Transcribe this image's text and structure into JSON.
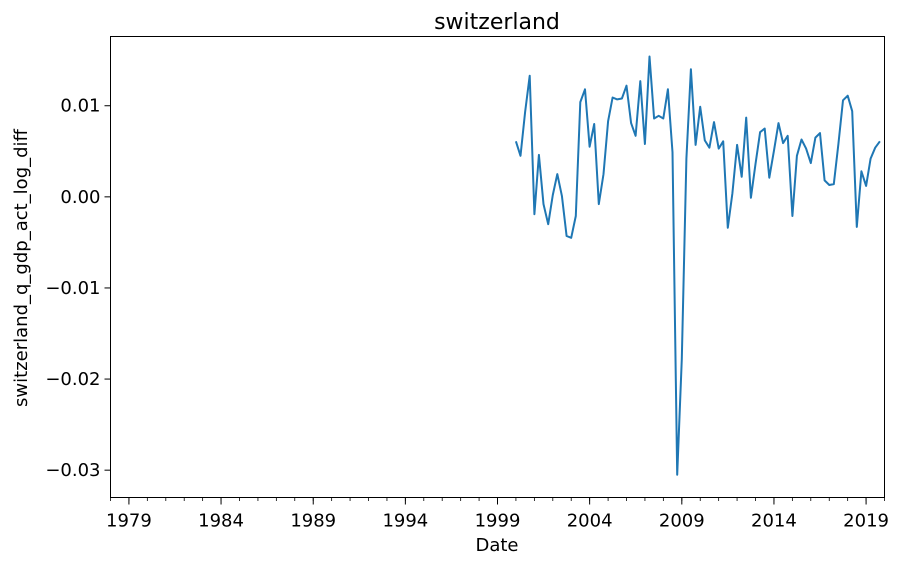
{
  "chart_data": {
    "type": "line",
    "title": "switzerland",
    "xlabel": "Date",
    "ylabel": "switzerland_q_gdp_act_log_diff",
    "xlim": [
      "1978-01-01",
      "2020-01-01"
    ],
    "ylim": [
      -0.033,
      0.0176
    ],
    "x_ticks": [
      "1979",
      "1984",
      "1989",
      "1994",
      "1999",
      "2004",
      "2009",
      "2014",
      "2019"
    ],
    "y_ticks": [
      {
        "value": 0.01,
        "label": "0.01"
      },
      {
        "value": 0.0,
        "label": "0.00"
      },
      {
        "value": -0.01,
        "label": "−0.01"
      },
      {
        "value": -0.02,
        "label": "−0.02"
      },
      {
        "value": -0.03,
        "label": "−0.03"
      }
    ],
    "grid": false,
    "legend": "none",
    "line_color": "#1f77b4",
    "series": [
      {
        "x": [
          "2000-01-01",
          "2000-04-01",
          "2000-07-01",
          "2000-10-01",
          "2001-01-01",
          "2001-04-01",
          "2001-07-01",
          "2001-10-01",
          "2002-01-01",
          "2002-04-01",
          "2002-07-01",
          "2002-10-01",
          "2003-01-01",
          "2003-04-01",
          "2003-07-01",
          "2003-10-01",
          "2004-01-01",
          "2004-04-01",
          "2004-07-01",
          "2004-10-01",
          "2005-01-01",
          "2005-04-01",
          "2005-07-01",
          "2005-10-01",
          "2006-01-01",
          "2006-04-01",
          "2006-07-01",
          "2006-10-01",
          "2007-01-01",
          "2007-04-01",
          "2007-07-01",
          "2007-10-01",
          "2008-01-01",
          "2008-04-01",
          "2008-07-01",
          "2008-10-01",
          "2009-01-01",
          "2009-04-01",
          "2009-07-01",
          "2009-10-01",
          "2010-01-01",
          "2010-04-01",
          "2010-07-01",
          "2010-10-01",
          "2011-01-01",
          "2011-04-01",
          "2011-07-01",
          "2011-10-01",
          "2012-01-01",
          "2012-04-01",
          "2012-07-01",
          "2012-10-01",
          "2013-01-01",
          "2013-04-01",
          "2013-07-01",
          "2013-10-01",
          "2014-01-01",
          "2014-04-01",
          "2014-07-01",
          "2014-10-01",
          "2015-01-01",
          "2015-04-01",
          "2015-07-01",
          "2015-10-01",
          "2016-01-01",
          "2016-04-01",
          "2016-07-01",
          "2016-10-01",
          "2017-01-01",
          "2017-04-01",
          "2017-07-01",
          "2017-10-01",
          "2018-01-01",
          "2018-04-01",
          "2018-07-01",
          "2018-10-01",
          "2019-01-01",
          "2019-04-01",
          "2019-07-01",
          "2019-10-01"
        ],
        "values": [
          0.0061,
          0.0045,
          0.0093,
          0.0133,
          -0.0019,
          0.0046,
          -0.0008,
          -0.003,
          0.0002,
          0.0025,
          0.0001,
          -0.0043,
          -0.0045,
          -0.0021,
          0.0104,
          0.0118,
          0.0055,
          0.008,
          -0.0008,
          0.0025,
          0.0083,
          0.0109,
          0.0107,
          0.0108,
          0.0122,
          0.0081,
          0.0067,
          0.0127,
          0.0058,
          0.0154,
          0.0086,
          0.0089,
          0.0086,
          0.0118,
          0.0049,
          -0.0305,
          -0.0178,
          0.0042,
          0.014,
          0.0057,
          0.0099,
          0.0062,
          0.0054,
          0.0082,
          0.0053,
          0.0061,
          -0.0034,
          0.0004,
          0.0057,
          0.0022,
          0.0087,
          -0.0001,
          0.0036,
          0.0071,
          0.0075,
          0.0021,
          0.0051,
          0.0081,
          0.0059,
          0.0067,
          -0.0021,
          0.0045,
          0.0063,
          0.0053,
          0.0037,
          0.0065,
          0.007,
          0.0018,
          0.0013,
          0.0014,
          0.0058,
          0.0106,
          0.0111,
          0.0094,
          -0.0033,
          0.0028,
          0.0012,
          0.0042,
          0.0054,
          0.0061
        ]
      }
    ]
  }
}
